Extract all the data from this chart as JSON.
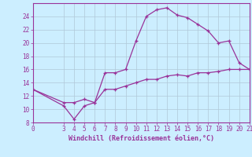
{
  "xlabel": "Windchill (Refroidissement éolien,°C)",
  "bg_color": "#cceeff",
  "grid_color": "#b0c8d8",
  "line_color": "#993399",
  "spine_color": "#993399",
  "tick_color": "#993399",
  "marker": "+",
  "xlim": [
    0,
    21
  ],
  "ylim": [
    8,
    26
  ],
  "xticks": [
    0,
    3,
    4,
    5,
    6,
    7,
    8,
    9,
    10,
    11,
    12,
    13,
    14,
    15,
    16,
    17,
    18,
    19,
    20,
    21
  ],
  "yticks": [
    8,
    10,
    12,
    14,
    16,
    18,
    20,
    22,
    24
  ],
  "curve1_x": [
    0,
    3,
    4,
    5,
    6,
    7,
    8,
    9,
    10,
    11,
    12,
    13,
    14,
    15,
    16,
    17,
    18,
    19,
    20,
    21
  ],
  "curve1_y": [
    13.0,
    10.5,
    8.5,
    10.5,
    11.0,
    15.5,
    15.5,
    16.0,
    20.3,
    24.0,
    25.0,
    25.3,
    24.2,
    23.8,
    22.8,
    21.8,
    20.0,
    20.3,
    17.0,
    16.0
  ],
  "curve2_x": [
    0,
    3,
    4,
    5,
    6,
    7,
    8,
    9,
    10,
    11,
    12,
    13,
    14,
    15,
    16,
    17,
    18,
    19,
    20,
    21
  ],
  "curve2_y": [
    13.0,
    11.0,
    11.0,
    11.5,
    11.0,
    13.0,
    13.0,
    13.5,
    14.0,
    14.5,
    14.5,
    15.0,
    15.2,
    15.0,
    15.5,
    15.5,
    15.7,
    16.0,
    16.0,
    16.0
  ],
  "xlabel_fontsize": 6,
  "tick_fontsize": 5.5,
  "linewidth": 0.9,
  "markersize": 3.5
}
